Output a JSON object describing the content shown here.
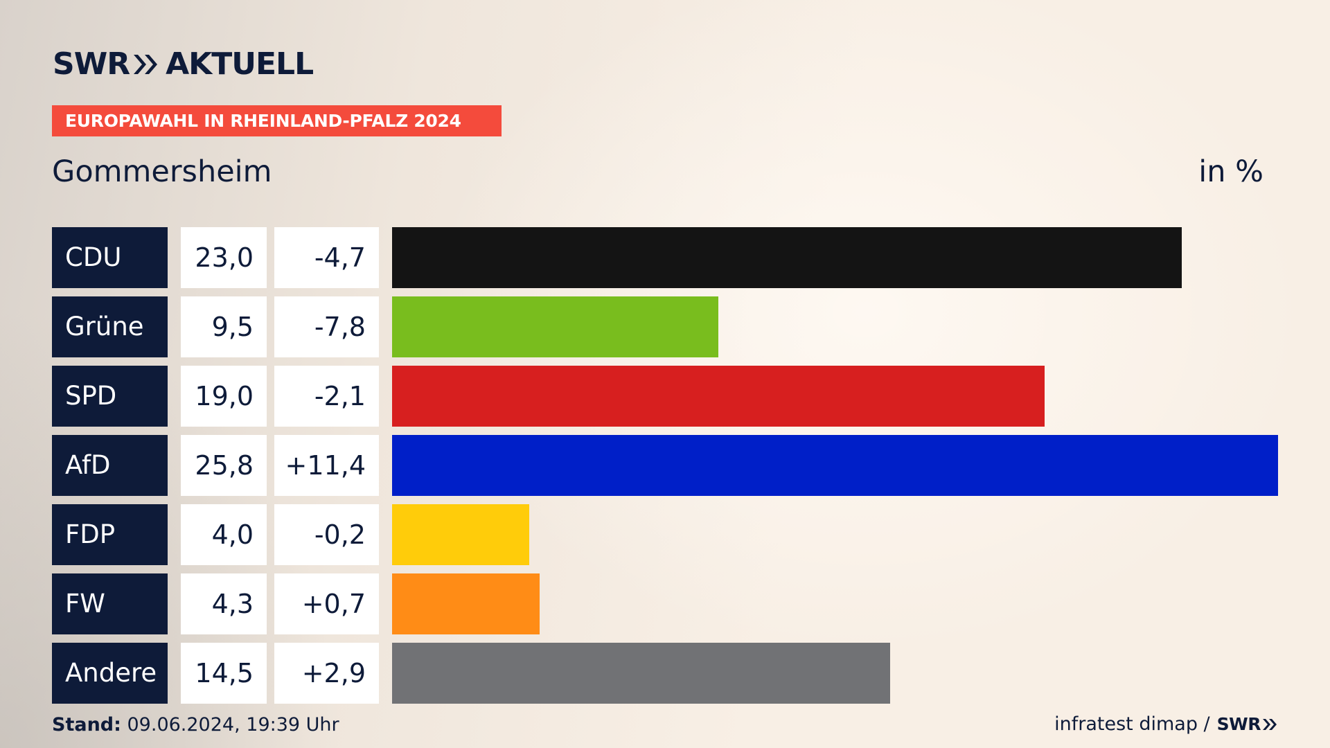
{
  "brand": {
    "logo_left": "SWR",
    "logo_right": "AKTUELL"
  },
  "banner": "EUROPAWAHL IN RHEINLAND-PFALZ 2024",
  "location": "Gommersheim",
  "unit": "in %",
  "footer": {
    "stand_label": "Stand:",
    "stand_value": " 09.06.2024, 19:39 Uhr",
    "source": "infratest dimap /",
    "source_logo": "SWR"
  },
  "colors": {
    "navy": "#0e1b39",
    "banner": "#f44b3c"
  },
  "chart_data": {
    "type": "bar",
    "orientation": "horizontal",
    "title": "Gommersheim",
    "unit_label": "in %",
    "xlim": [
      0,
      25.8
    ],
    "categories": [
      "CDU",
      "Grüne",
      "SPD",
      "AfD",
      "FDP",
      "FW",
      "Andere"
    ],
    "values": [
      23.0,
      9.5,
      19.0,
      25.8,
      4.0,
      4.3,
      14.5
    ],
    "value_labels": [
      "23,0",
      "9,5",
      "19,0",
      "25,8",
      "4,0",
      "4,3",
      "14,5"
    ],
    "changes": [
      -4.7,
      -7.8,
      -2.1,
      11.4,
      -0.2,
      0.7,
      2.9
    ],
    "change_labels": [
      "-4,7",
      "-7,8",
      "-2,1",
      "+11,4",
      "-0,2",
      "+0,7",
      "+2,9"
    ],
    "bar_colors": [
      "#141414",
      "#79bd1e",
      "#d71f1f",
      "#001fc8",
      "#ffcc0a",
      "#ff8c16",
      "#717275"
    ]
  }
}
